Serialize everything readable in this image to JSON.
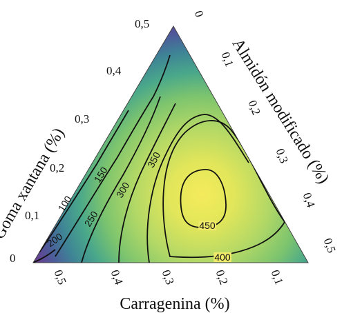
{
  "chart_data": {
    "type": "ternary-contour",
    "axes": {
      "left": {
        "label": "Goma xantana (%)",
        "ticks": [
          "0",
          "0,1",
          "0,2",
          "0,3",
          "0,4",
          "0,5"
        ]
      },
      "right": {
        "label": "Almidón modificado (%)",
        "ticks": [
          "0",
          "0,1",
          "0,2",
          "0,3",
          "0,4",
          "0,5"
        ]
      },
      "bottom": {
        "label": "Carragenina (%)",
        "ticks": [
          "0,5",
          "0,4",
          "0,3",
          "0,2",
          "0,1"
        ]
      }
    },
    "range": [
      0,
      0.5
    ],
    "contour_levels": [
      100,
      150,
      200,
      250,
      300,
      350,
      400,
      450
    ],
    "contour_labels": [
      "100",
      "150",
      "200",
      "250",
      "300",
      "350",
      "400",
      "450"
    ],
    "maximum_region": {
      "carragenina": 0.2,
      "goma_xantana": 0.15,
      "almidon_modificado": 0.15,
      "level": 450
    },
    "colormap": [
      "#440154",
      "#3b528b",
      "#21918c",
      "#5ec962",
      "#fde725"
    ]
  }
}
